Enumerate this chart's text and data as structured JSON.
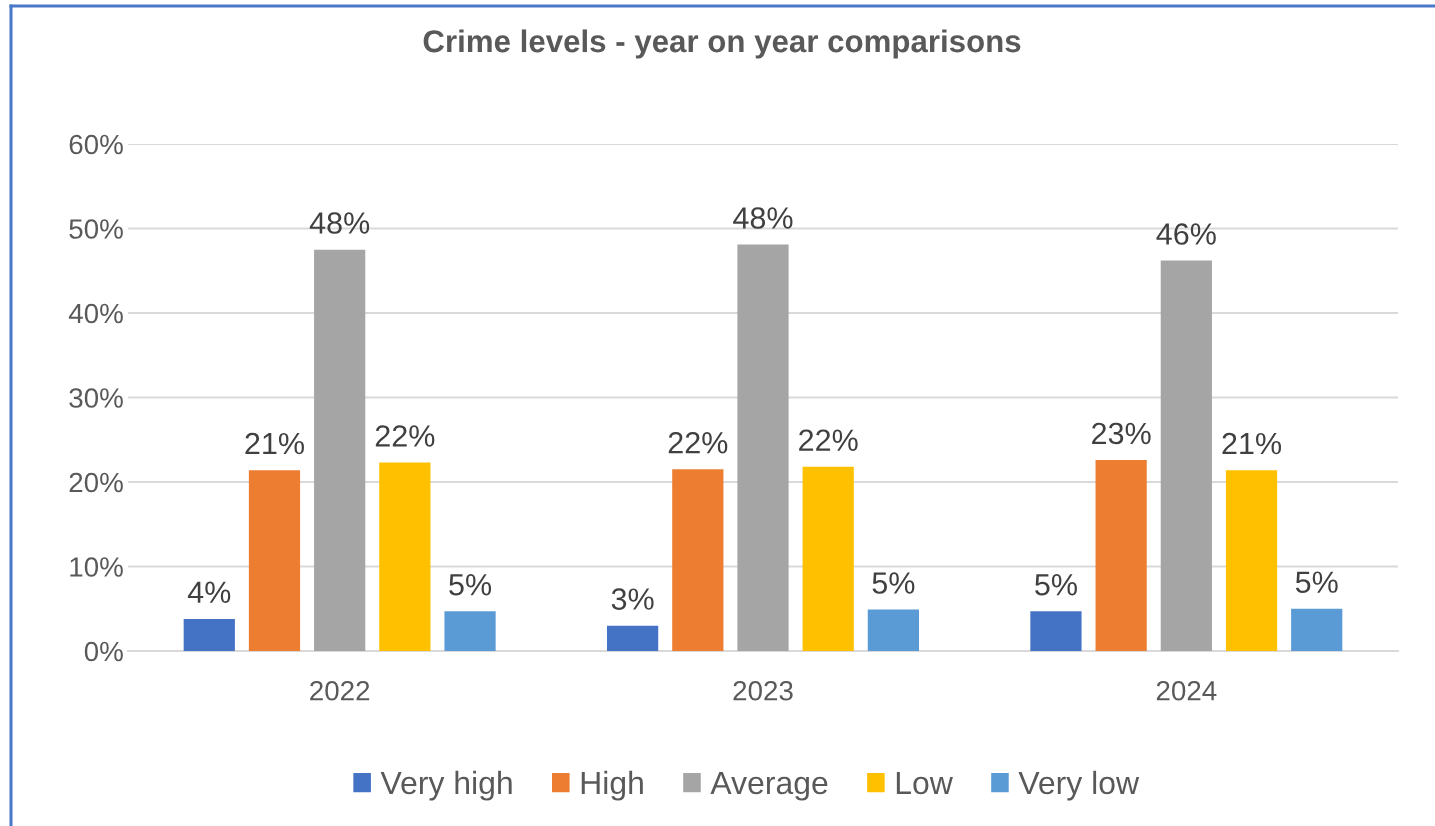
{
  "chart_data": {
    "type": "bar",
    "title": "Crime levels - year on year comparisons",
    "categories": [
      "2022",
      "2023",
      "2024"
    ],
    "series": [
      {
        "name": "Very high",
        "color": "#4472c4",
        "values": [
          3.8,
          3.0,
          4.7
        ],
        "value_labels": [
          "4%",
          "3%",
          "5%"
        ]
      },
      {
        "name": "High",
        "color": "#ed7d31",
        "values": [
          21.4,
          21.5,
          22.6
        ],
        "value_labels": [
          "21%",
          "22%",
          "23%"
        ]
      },
      {
        "name": "Average",
        "color": "#a5a5a5",
        "values": [
          47.5,
          48.1,
          46.2
        ],
        "value_labels": [
          "48%",
          "48%",
          "46%"
        ]
      },
      {
        "name": "Low",
        "color": "#ffc000",
        "values": [
          22.3,
          21.8,
          21.4
        ],
        "value_labels": [
          "22%",
          "22%",
          "21%"
        ]
      },
      {
        "name": "Very low",
        "color": "#5b9bd5",
        "values": [
          4.7,
          4.9,
          5.0
        ],
        "value_labels": [
          "5%",
          "5%",
          "5%"
        ]
      }
    ],
    "ylim": [
      0,
      60
    ],
    "yticks": [
      {
        "value": 0,
        "label": "0%"
      },
      {
        "value": 10,
        "label": "10%"
      },
      {
        "value": 20,
        "label": "20%"
      },
      {
        "value": 30,
        "label": "30%"
      },
      {
        "value": 40,
        "label": "40%"
      },
      {
        "value": 50,
        "label": "50%"
      },
      {
        "value": 60,
        "label": "60%"
      }
    ],
    "grid": "y",
    "legend": "bottom"
  }
}
